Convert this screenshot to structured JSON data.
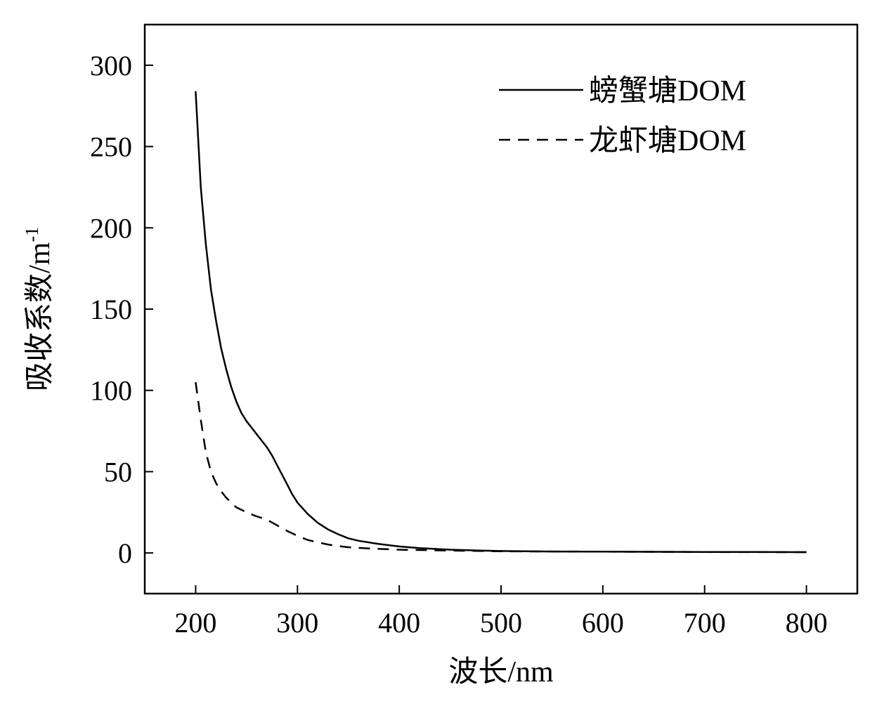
{
  "chart_data": {
    "type": "line",
    "xlabel": "波长/nm",
    "ylabel": "吸收系数/m",
    "ylabel_superscript": "-1",
    "xlim": [
      150,
      850
    ],
    "ylim": [
      -25,
      325
    ],
    "xticks": [
      200,
      300,
      400,
      500,
      600,
      700,
      800
    ],
    "yticks": [
      0,
      50,
      100,
      150,
      200,
      250,
      300
    ],
    "xtick_labels": [
      "200",
      "300",
      "400",
      "500",
      "600",
      "700",
      "800"
    ],
    "ytick_labels": [
      "0",
      "50",
      "100",
      "150",
      "200",
      "250",
      "300"
    ],
    "grid": false,
    "legend_position": "top-right",
    "series": [
      {
        "name": "螃蟹塘DOM",
        "style": "solid",
        "color": "#000000",
        "x": [
          200,
          205,
          210,
          215,
          220,
          225,
          230,
          235,
          240,
          245,
          250,
          255,
          260,
          265,
          270,
          275,
          280,
          285,
          290,
          295,
          300,
          310,
          320,
          330,
          340,
          350,
          360,
          380,
          400,
          420,
          450,
          480,
          500,
          550,
          600,
          650,
          700,
          750,
          800
        ],
        "y": [
          284,
          225,
          190,
          162,
          143,
          126,
          113,
          102,
          93,
          86,
          81,
          77,
          73,
          69,
          65,
          60,
          54,
          48,
          42,
          36,
          31,
          24,
          18.5,
          14.5,
          11.5,
          9,
          7.5,
          5.5,
          4,
          3,
          2,
          1.5,
          1.2,
          0.9,
          0.8,
          0.7,
          0.6,
          0.6,
          0.5
        ]
      },
      {
        "name": "龙虾塘DOM",
        "style": "dashed",
        "color": "#000000",
        "x": [
          200,
          205,
          210,
          215,
          220,
          225,
          230,
          235,
          240,
          245,
          250,
          260,
          270,
          280,
          290,
          300,
          310,
          320,
          330,
          340,
          350,
          370,
          400,
          450,
          500,
          600,
          700,
          800
        ],
        "y": [
          105,
          82,
          62,
          50,
          43,
          38,
          34,
          31,
          28,
          26.5,
          25,
          22.5,
          20.5,
          17,
          13.5,
          10.5,
          8,
          6.5,
          5.2,
          4.2,
          3.5,
          2.8,
          2,
          1.5,
          1,
          0.8,
          0.6,
          0.5
        ]
      }
    ]
  }
}
